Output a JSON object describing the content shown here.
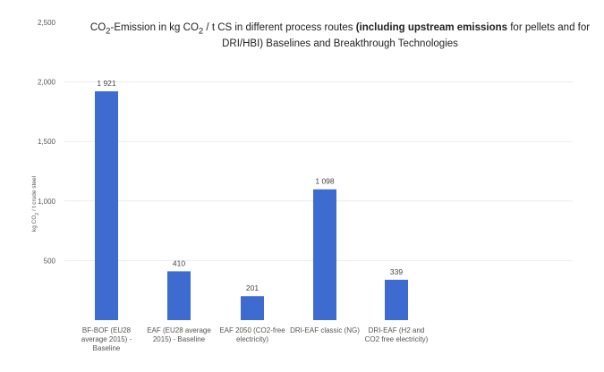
{
  "chart_data": {
    "type": "bar",
    "title": {
      "prefix": "CO",
      "prefix_sub": "2",
      "mid": "-Emission in kg CO",
      "mid_sub": "2",
      "before_bold": " / t CS in different process routes ",
      "bold": "(including upstream emissions",
      "after_bold": " for pellets and for DRI/HBI) Baselines and Breakthrough Technologies"
    },
    "ylabel": {
      "pre": "kg CO",
      "sub": "2",
      "post": " / t crude steel"
    },
    "xlabel": "",
    "ylim": [
      0,
      2500
    ],
    "yticks": [
      {
        "value": 500,
        "label": "500"
      },
      {
        "value": 1000,
        "label": "1,000"
      },
      {
        "value": 1500,
        "label": "1,500"
      },
      {
        "value": 2000,
        "label": "2,000"
      },
      {
        "value": 2500,
        "label": "2,500"
      }
    ],
    "categories": [
      [
        "BF-BOF (EU28",
        "average 2015) -",
        "Baseline"
      ],
      [
        "EAF (EU28 average",
        "2015) - Baseline"
      ],
      [
        "EAF 2050 (CO2-free",
        "electricity)"
      ],
      [
        "DRI-EAF classic (NG)"
      ],
      [
        "DRI-EAF (H2 and",
        "CO2 free electricity)"
      ]
    ],
    "values": [
      1921,
      410,
      201,
      1098,
      339
    ],
    "data_labels": [
      "1 921",
      "410",
      "201",
      "1 098",
      "339"
    ],
    "bar_color": "#3d6bd0",
    "grid": true,
    "grid_color": "#ececec"
  }
}
